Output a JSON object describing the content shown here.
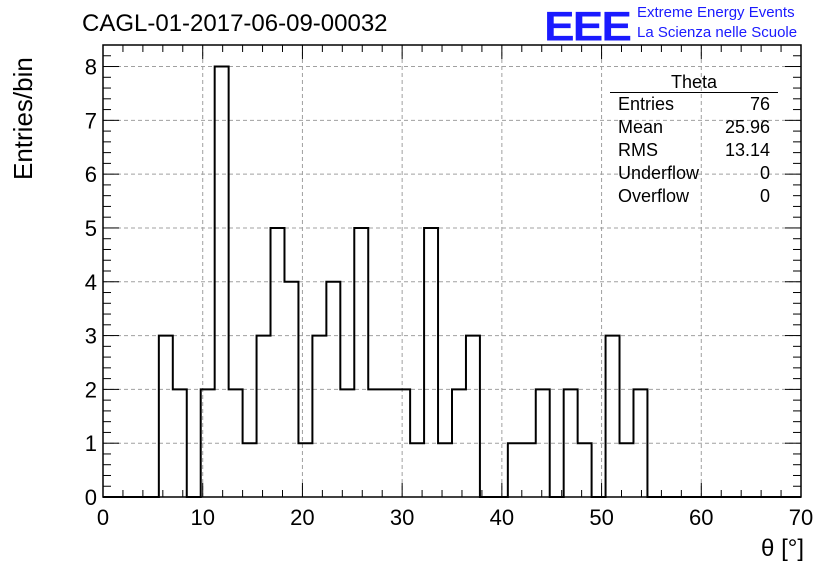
{
  "title": "CAGL-01-2017-06-09-00032",
  "logo": {
    "mark": "EEE",
    "line1": "Extreme Energy Events",
    "line2": "La Scienza nelle Scuole"
  },
  "stats_box": {
    "title": "Theta",
    "rows": [
      {
        "label": "Entries",
        "value": "76"
      },
      {
        "label": "Mean",
        "value": "25.96"
      },
      {
        "label": "RMS",
        "value": "13.14"
      },
      {
        "label": "Underflow",
        "value": "0"
      },
      {
        "label": "Overflow",
        "value": "0"
      }
    ]
  },
  "colors": {
    "line": "#000000",
    "grid": "#a0a0a0",
    "logo": "#1a1aff"
  },
  "chart_data": {
    "type": "bar",
    "style": "step-histogram",
    "xlabel": "θ [°]",
    "ylabel": "Entries/bin",
    "xlim": [
      0,
      70
    ],
    "ylim": [
      0,
      8.4
    ],
    "bin_width": 1.4,
    "bin_edges_start": 0,
    "values": [
      0,
      0,
      0,
      0,
      3,
      2,
      0,
      2,
      8,
      2,
      1,
      3,
      5,
      4,
      1,
      3,
      4,
      2,
      5,
      2,
      2,
      2,
      1,
      5,
      1,
      2,
      3,
      0,
      0,
      1,
      1,
      2,
      0,
      2,
      1,
      0,
      3,
      1,
      2,
      0,
      0,
      0,
      0,
      0,
      0,
      0,
      0,
      0,
      0,
      0
    ],
    "x_ticks": [
      "0",
      "10",
      "20",
      "30",
      "40",
      "50",
      "60",
      "70"
    ],
    "y_ticks": [
      "0",
      "1",
      "2",
      "3",
      "4",
      "5",
      "6",
      "7",
      "8"
    ],
    "grid": true
  }
}
